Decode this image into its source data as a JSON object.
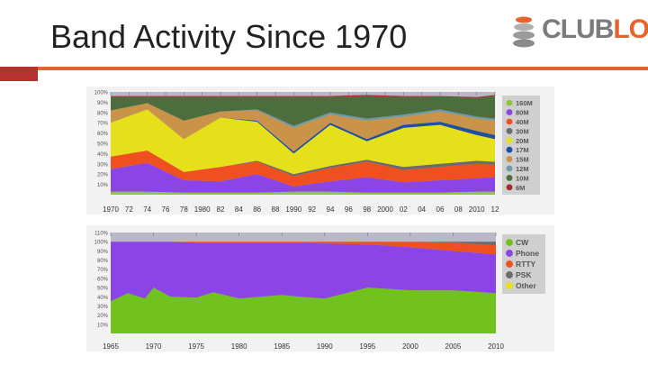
{
  "slide": {
    "title": "Band Activity Since 1970"
  },
  "logo": {
    "text_main": "CLUB",
    "text_accent": "LOG"
  },
  "chart_data": [
    {
      "type": "area",
      "stacked": true,
      "normalized": true,
      "title": "",
      "x": [
        1970,
        1974,
        1978,
        1982,
        1986,
        1990,
        1994,
        1998,
        2002,
        2006,
        2010,
        2012
      ],
      "x_tick_labels": [
        "1970",
        "72",
        "74",
        "76",
        "78",
        "1980",
        "82",
        "84",
        "86",
        "88",
        "1990",
        "92",
        "94",
        "96",
        "98",
        "2000",
        "02",
        "04",
        "06",
        "08",
        "2010",
        "12"
      ],
      "y_tick_labels": [
        "10%",
        "20%",
        "30%",
        "40%",
        "50%",
        "60%",
        "70%",
        "80%",
        "90%",
        "100%"
      ],
      "ylim": [
        0,
        100
      ],
      "legend_position": "right",
      "series": [
        {
          "name": "160M",
          "color": "#8cc63f",
          "values": [
            3,
            3,
            2,
            2,
            2,
            3,
            3,
            2,
            2,
            2,
            3,
            3
          ]
        },
        {
          "name": "80M",
          "color": "#8b45e6",
          "values": [
            22,
            28,
            12,
            11,
            18,
            5,
            10,
            15,
            10,
            12,
            13,
            14
          ]
        },
        {
          "name": "40M",
          "color": "#f0501f",
          "values": [
            12,
            12,
            8,
            14,
            12,
            10,
            13,
            15,
            12,
            13,
            14,
            12
          ]
        },
        {
          "name": "30M",
          "color": "#6b6b6b",
          "values": [
            0,
            0,
            0,
            0,
            1,
            2,
            2,
            2,
            3,
            3,
            3,
            3
          ]
        },
        {
          "name": "20M",
          "color": "#e6e01a",
          "values": [
            33,
            40,
            32,
            48,
            38,
            20,
            40,
            18,
            38,
            38,
            25,
            22
          ]
        },
        {
          "name": "17M",
          "color": "#1f4fa0",
          "values": [
            0,
            0,
            0,
            0,
            1,
            2,
            2,
            2,
            3,
            3,
            4,
            4
          ]
        },
        {
          "name": "15M",
          "color": "#c9944a",
          "values": [
            12,
            6,
            18,
            6,
            10,
            23,
            8,
            18,
            8,
            10,
            12,
            14
          ]
        },
        {
          "name": "12M",
          "color": "#6f9aa6",
          "values": [
            0,
            0,
            0,
            0,
            1,
            2,
            2,
            2,
            2,
            2,
            2,
            2
          ]
        },
        {
          "name": "10M",
          "color": "#4c6e3f",
          "values": [
            13,
            6,
            23,
            14,
            12,
            28,
            15,
            22,
            17,
            12,
            18,
            22
          ]
        },
        {
          "name": "6M",
          "color": "#a52a2a",
          "values": [
            1,
            1,
            1,
            1,
            1,
            1,
            1,
            1,
            1,
            1,
            1,
            1
          ]
        }
      ]
    },
    {
      "type": "area",
      "stacked": true,
      "normalized": true,
      "title": "",
      "x": [
        1965,
        1967,
        1969,
        1970,
        1972,
        1975,
        1977,
        1980,
        1985,
        1987,
        1990,
        1995,
        2000,
        2005,
        2010
      ],
      "x_tick_labels": [
        "1965",
        "1970",
        "1975",
        "1980",
        "1985",
        "1990",
        "1995",
        "2000",
        "2005",
        "2010"
      ],
      "y_tick_labels": [
        "10%",
        "20%",
        "30%",
        "40%",
        "50%",
        "60%",
        "70%",
        "80%",
        "90%",
        "100%",
        "110%"
      ],
      "ylim": [
        0,
        110
      ],
      "legend_position": "right",
      "series": [
        {
          "name": "CW",
          "color": "#72c21e",
          "values": [
            35,
            44,
            38,
            50,
            40,
            39,
            45,
            38,
            42,
            40,
            38,
            50,
            47,
            47,
            44
          ]
        },
        {
          "name": "Phone",
          "color": "#8b45e6",
          "values": [
            65,
            56,
            62,
            50,
            60,
            60,
            54,
            61,
            57,
            59,
            60,
            47,
            47,
            43,
            42
          ]
        },
        {
          "name": "RTTY",
          "color": "#f0501f",
          "values": [
            0,
            0,
            0,
            0,
            0,
            1,
            1,
            1,
            1,
            1,
            2,
            3,
            6,
            9,
            10
          ]
        },
        {
          "name": "PSK",
          "color": "#6b6b6b",
          "values": [
            0,
            0,
            0,
            0,
            0,
            0,
            0,
            0,
            0,
            0,
            0,
            0,
            0,
            1,
            4
          ]
        },
        {
          "name": "Other",
          "color": "#e6e01a",
          "values": [
            0,
            0,
            0,
            0,
            0,
            0,
            0,
            0,
            0,
            0,
            0,
            0,
            0,
            0,
            0
          ]
        }
      ]
    }
  ]
}
